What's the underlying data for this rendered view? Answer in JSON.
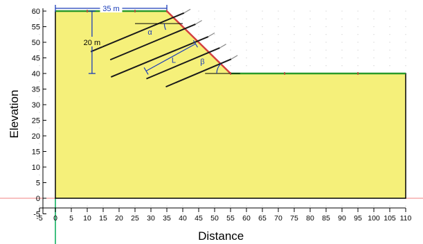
{
  "axes": {
    "x_title": "Distance",
    "y_title": "Elevation",
    "x_ticks": [
      "-5",
      "0",
      "5",
      "10",
      "15",
      "20",
      "25",
      "30",
      "35",
      "40",
      "45",
      "50",
      "55",
      "60",
      "65",
      "70",
      "75",
      "80",
      "85",
      "90",
      "95",
      "100",
      "105",
      "110"
    ],
    "y_ticks": [
      "-5",
      "0",
      "5",
      "10",
      "15",
      "20",
      "25",
      "30",
      "35",
      "40",
      "45",
      "50",
      "55",
      "60"
    ],
    "x_range": [
      -5,
      110
    ],
    "y_range": [
      -5,
      60
    ],
    "grid": "dotted"
  },
  "geometry": {
    "slope_outline": [
      [
        0,
        0
      ],
      [
        0,
        60
      ],
      [
        35,
        60
      ],
      [
        55,
        40
      ],
      [
        110,
        40
      ],
      [
        110,
        0
      ]
    ],
    "slope_face": [
      [
        35,
        60
      ],
      [
        55,
        40
      ]
    ]
  },
  "annotations": {
    "width_label": "35 m",
    "height_label": "20 m",
    "alpha_label": "α",
    "length_label": "L",
    "beta_label": "β"
  },
  "colors": {
    "soil_fill": "#f5f07a",
    "outline": "#000000",
    "dimension": "#1a3cb8",
    "nail": "#1a1a1a",
    "face_highlight": "#d44040",
    "crest_highlight": "#2a9a2a",
    "axis_zero_line": "#f08080",
    "y_zero_line": "#40c080"
  }
}
